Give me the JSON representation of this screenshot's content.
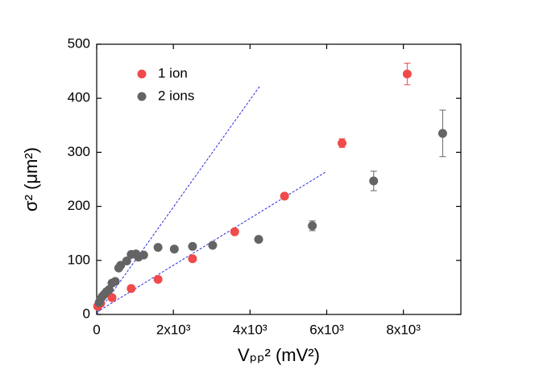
{
  "chart_data": {
    "type": "scatter",
    "xlabel": "Vₚₚ² (mV²)",
    "ylabel": "σ² (μm²)",
    "xlim": [
      0,
      9500
    ],
    "ylim": [
      0,
      500
    ],
    "xticks": [
      {
        "value": 0,
        "label": "0"
      },
      {
        "value": 2000,
        "label": "2x10³"
      },
      {
        "value": 4000,
        "label": "4x10³"
      },
      {
        "value": 6000,
        "label": "6x10³"
      },
      {
        "value": 8000,
        "label": "8x10³"
      }
    ],
    "yticks": [
      0,
      100,
      200,
      300,
      400,
      500
    ],
    "legend": "upper left",
    "series": [
      {
        "name": "1 ion",
        "color": "#f04a4a",
        "x": [
          25,
          100,
          400,
          900,
          1600,
          2500,
          3600,
          4900,
          6400,
          8100
        ],
        "values": [
          15,
          20,
          31,
          48,
          65,
          103,
          153,
          219,
          317,
          445
        ],
        "errors": [
          null,
          null,
          null,
          null,
          null,
          null,
          null,
          null,
          8,
          20
        ]
      },
      {
        "name": "2 ions",
        "color": "#646464",
        "x": [
          64,
          100,
          144,
          196,
          256,
          324,
          400,
          484,
          576,
          625,
          784,
          900,
          1024,
          1089,
          1225,
          1600,
          2025,
          2500,
          3025,
          4225,
          5625,
          7225,
          9025
        ],
        "values": [
          22,
          28,
          33,
          37,
          42,
          46,
          58,
          61,
          86,
          91,
          99,
          111,
          112,
          106,
          110,
          124,
          121,
          126,
          128,
          139,
          164,
          247,
          335
        ],
        "errors": [
          null,
          null,
          null,
          null,
          null,
          null,
          null,
          null,
          null,
          null,
          null,
          null,
          null,
          null,
          null,
          null,
          null,
          null,
          null,
          null,
          9,
          18,
          43
        ]
      }
    ],
    "fit_lines": [
      {
        "color": "#2a2ae0",
        "x": [
          0,
          4270
        ],
        "values": [
          0,
          424
        ]
      },
      {
        "color": "#2a2ae0",
        "x": [
          0,
          5960
        ],
        "values": [
          4,
          263
        ]
      }
    ]
  }
}
